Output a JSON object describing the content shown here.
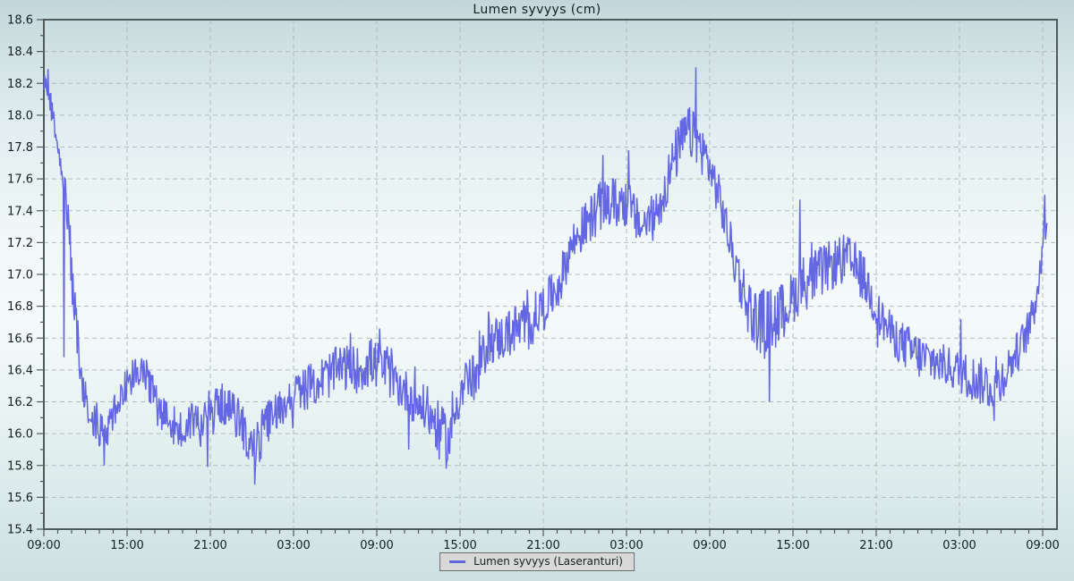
{
  "title": "Lumen syvyys (cm)",
  "legend": {
    "label": "Lumen syvyys (Laseranturi)"
  },
  "colors": {
    "line": "#6467e2",
    "grid": "#b2bcbc",
    "axis": "#4f5a5a",
    "text": "#14201f",
    "legend_bg": "#d9d9d9",
    "legend_border": "#6e6e6e"
  },
  "y_axis": {
    "min": 15.4,
    "max": 18.6,
    "major_step": 0.2,
    "minor_step": 0.1,
    "labels": [
      "15.4",
      "15.6",
      "15.8",
      "16.0",
      "16.2",
      "16.4",
      "16.6",
      "16.8",
      "17.0",
      "17.2",
      "17.4",
      "17.6",
      "17.8",
      "18.0",
      "18.2",
      "18.4",
      "18.6"
    ]
  },
  "x_axis": {
    "total_hours": 72,
    "label_step_hours": 6,
    "minor_step_hours": 1,
    "labels": [
      "09:00",
      "15:00",
      "21:00",
      "03:00",
      "09:00",
      "15:00",
      "21:00",
      "03:00",
      "09:00",
      "15:00",
      "21:00",
      "03:00",
      "09:00"
    ]
  },
  "chart_data": {
    "type": "line",
    "title": "Lumen syvyys (cm)",
    "xlabel": "",
    "ylabel": "",
    "ylim": [
      15.4,
      18.6
    ],
    "x_unit": "hours since first 09:00 tick (3-day span, ticks every 6 h, minor ticks hourly)",
    "grid": "dashed gray gridlines at every labeled tick (0.2 cm vertically, 6 h horizontally)",
    "legend_position": "bottom-center",
    "series": [
      {
        "name": "Lumen syvyys (Laseranturi)",
        "color": "#6467e2",
        "style": "very noisy thin line; measurements jitter inside a band around the trend, looking like dense vertical bars",
        "noise": {
          "distribution": "uniform within half-band, 4% of samples stretched 1.6x",
          "sample_step_hours": 0.05,
          "seed": 123456789
        },
        "trend_keypoints_t_mean_halfband": [
          [
            0.0,
            18.22,
            0.08
          ],
          [
            0.5,
            18.1,
            0.12
          ],
          [
            1.0,
            17.85,
            0.1
          ],
          [
            1.4,
            17.62,
            0.1
          ],
          [
            1.8,
            17.25,
            0.18
          ],
          [
            2.2,
            16.8,
            0.22
          ],
          [
            2.6,
            16.4,
            0.15
          ],
          [
            3.1,
            16.2,
            0.14
          ],
          [
            3.8,
            16.08,
            0.14
          ],
          [
            4.4,
            15.95,
            0.13
          ],
          [
            5.0,
            16.12,
            0.12
          ],
          [
            5.6,
            16.28,
            0.13
          ],
          [
            6.5,
            16.38,
            0.13
          ],
          [
            7.5,
            16.34,
            0.12
          ],
          [
            8.3,
            16.16,
            0.14
          ],
          [
            9.2,
            16.08,
            0.14
          ],
          [
            9.9,
            16.0,
            0.15
          ],
          [
            10.7,
            16.1,
            0.13
          ],
          [
            11.7,
            16.04,
            0.16
          ],
          [
            12.6,
            16.2,
            0.13
          ],
          [
            13.6,
            16.14,
            0.13
          ],
          [
            14.4,
            16.04,
            0.15
          ],
          [
            15.2,
            15.88,
            0.18
          ],
          [
            16.0,
            16.06,
            0.14
          ],
          [
            17.0,
            16.16,
            0.13
          ],
          [
            18.0,
            16.24,
            0.13
          ],
          [
            19.2,
            16.3,
            0.14
          ],
          [
            20.4,
            16.36,
            0.15
          ],
          [
            21.6,
            16.42,
            0.15
          ],
          [
            22.6,
            16.4,
            0.15
          ],
          [
            23.6,
            16.45,
            0.16
          ],
          [
            24.6,
            16.4,
            0.15
          ],
          [
            25.6,
            16.3,
            0.14
          ],
          [
            26.6,
            16.22,
            0.15
          ],
          [
            27.6,
            16.14,
            0.15
          ],
          [
            28.6,
            16.02,
            0.17
          ],
          [
            29.2,
            15.95,
            0.16
          ],
          [
            29.8,
            16.2,
            0.15
          ],
          [
            30.4,
            16.35,
            0.14
          ],
          [
            31.2,
            16.34,
            0.16
          ],
          [
            32.0,
            16.58,
            0.15
          ],
          [
            33.0,
            16.6,
            0.15
          ],
          [
            34.0,
            16.66,
            0.16
          ],
          [
            34.8,
            16.66,
            0.18
          ],
          [
            35.6,
            16.76,
            0.15
          ],
          [
            36.4,
            16.84,
            0.14
          ],
          [
            37.2,
            16.95,
            0.15
          ],
          [
            38.0,
            17.18,
            0.14
          ],
          [
            39.0,
            17.3,
            0.15
          ],
          [
            40.0,
            17.42,
            0.16
          ],
          [
            41.0,
            17.45,
            0.16
          ],
          [
            42.0,
            17.45,
            0.17
          ],
          [
            43.0,
            17.3,
            0.14
          ],
          [
            44.0,
            17.36,
            0.15
          ],
          [
            44.8,
            17.55,
            0.16
          ],
          [
            45.6,
            17.76,
            0.17
          ],
          [
            46.4,
            17.9,
            0.17
          ],
          [
            47.1,
            17.84,
            0.16
          ],
          [
            47.9,
            17.7,
            0.15
          ],
          [
            48.7,
            17.48,
            0.14
          ],
          [
            49.6,
            17.15,
            0.15
          ],
          [
            50.4,
            16.9,
            0.18
          ],
          [
            51.2,
            16.72,
            0.2
          ],
          [
            52.2,
            16.7,
            0.22
          ],
          [
            53.2,
            16.76,
            0.19
          ],
          [
            54.0,
            16.86,
            0.17
          ],
          [
            54.8,
            16.95,
            0.19
          ],
          [
            55.8,
            17.0,
            0.17
          ],
          [
            56.8,
            17.06,
            0.16
          ],
          [
            57.8,
            17.1,
            0.16
          ],
          [
            58.8,
            17.02,
            0.16
          ],
          [
            59.5,
            16.9,
            0.15
          ],
          [
            60.2,
            16.74,
            0.14
          ],
          [
            61.2,
            16.62,
            0.13
          ],
          [
            62.2,
            16.54,
            0.15
          ],
          [
            63.2,
            16.48,
            0.15
          ],
          [
            64.2,
            16.45,
            0.14
          ],
          [
            65.2,
            16.42,
            0.13
          ],
          [
            66.2,
            16.38,
            0.14
          ],
          [
            67.2,
            16.34,
            0.15
          ],
          [
            68.2,
            16.3,
            0.16
          ],
          [
            69.0,
            16.34,
            0.14
          ],
          [
            69.8,
            16.46,
            0.13
          ],
          [
            70.6,
            16.58,
            0.13
          ],
          [
            71.2,
            16.72,
            0.12
          ],
          [
            71.7,
            16.95,
            0.12
          ],
          [
            72.0,
            17.2,
            0.13
          ],
          [
            72.3,
            17.38,
            0.1
          ]
        ],
        "extreme_spikes_t_value": [
          [
            0.3,
            18.29
          ],
          [
            1.45,
            16.48
          ],
          [
            4.35,
            15.8
          ],
          [
            11.8,
            15.79
          ],
          [
            15.2,
            15.68
          ],
          [
            24.2,
            16.66
          ],
          [
            26.3,
            15.9
          ],
          [
            29.0,
            15.78
          ],
          [
            40.3,
            17.75
          ],
          [
            42.15,
            17.78
          ],
          [
            47.0,
            18.3
          ],
          [
            52.3,
            16.2
          ],
          [
            54.5,
            17.47
          ],
          [
            66.1,
            16.72
          ],
          [
            68.5,
            16.08
          ],
          [
            72.15,
            17.5
          ]
        ]
      }
    ]
  }
}
